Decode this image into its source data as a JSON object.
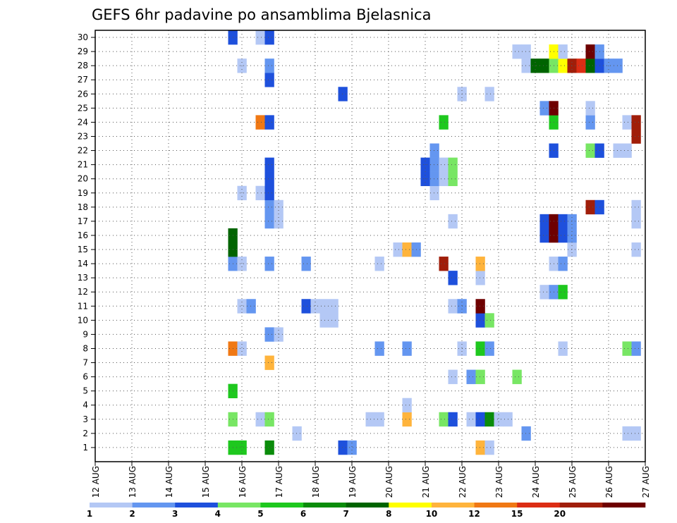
{
  "chart_data": {
    "type": "heatmap",
    "title": "GEFS 6hr padavine po ansamblima Bjelasnica",
    "xlabel": "",
    "ylabel": "",
    "x_ticks": [
      "12 AUG",
      "13 AUG",
      "14 AUG",
      "15 AUG",
      "16 AUG",
      "17 AUG",
      "18 AUG",
      "19 AUG",
      "20 AUG",
      "21 AUG",
      "22 AUG",
      "23 AUG",
      "24 AUG",
      "25 AUG",
      "26 AUG",
      "27 AUG"
    ],
    "y_ticks": [
      "1",
      "2",
      "3",
      "4",
      "5",
      "6",
      "7",
      "8",
      "9",
      "10",
      "11",
      "12",
      "13",
      "14",
      "15",
      "16",
      "17",
      "18",
      "19",
      "20",
      "21",
      "22",
      "23",
      "24",
      "25",
      "26",
      "27",
      "28",
      "29",
      "30"
    ],
    "x_range": [
      "12 AUG 00Z",
      "27 AUG 00Z"
    ],
    "y_range": [
      0,
      30
    ],
    "time_step_hours": 6,
    "grid": "dotted",
    "legend_position": "bottom",
    "color_levels": [
      "1",
      "2",
      "3",
      "4",
      "5",
      "6",
      "7",
      "8",
      "10",
      "12",
      "15",
      "20"
    ],
    "colors": [
      "#b4c8f5",
      "#6496f0",
      "#1e50dc",
      "#78e664",
      "#1ec81e",
      "#0a8c0a",
      "#006400",
      "#ffff00",
      "#ffb43c",
      "#f07814",
      "#dc2d14",
      "#a01e0a",
      "#6e0000"
    ],
    "cells": [
      {
        "member": 1,
        "time": "15 AUG 18Z",
        "cls": 5
      },
      {
        "member": 1,
        "time": "16 AUG 00Z",
        "cls": 5
      },
      {
        "member": 1,
        "time": "16 AUG 18Z",
        "cls": 6
      },
      {
        "member": 1,
        "time": "18 AUG 18Z",
        "cls": 3
      },
      {
        "member": 1,
        "time": "19 AUG 00Z",
        "cls": 2
      },
      {
        "member": 1,
        "time": "22 AUG 12Z",
        "cls": 9
      },
      {
        "member": 1,
        "time": "22 AUG 18Z",
        "cls": 1
      },
      {
        "member": 2,
        "time": "17 AUG 12Z",
        "cls": 1
      },
      {
        "member": 2,
        "time": "23 AUG 18Z",
        "cls": 2
      },
      {
        "member": 2,
        "time": "26 AUG 12Z",
        "cls": 1
      },
      {
        "member": 2,
        "time": "26 AUG 18Z",
        "cls": 1
      },
      {
        "member": 3,
        "time": "15 AUG 18Z",
        "cls": 4
      },
      {
        "member": 3,
        "time": "16 AUG 12Z",
        "cls": 1
      },
      {
        "member": 3,
        "time": "16 AUG 18Z",
        "cls": 4
      },
      {
        "member": 3,
        "time": "19 AUG 12Z",
        "cls": 1
      },
      {
        "member": 3,
        "time": "19 AUG 18Z",
        "cls": 1
      },
      {
        "member": 3,
        "time": "20 AUG 12Z",
        "cls": 9
      },
      {
        "member": 3,
        "time": "21 AUG 12Z",
        "cls": 4
      },
      {
        "member": 3,
        "time": "21 AUG 18Z",
        "cls": 3
      },
      {
        "member": 3,
        "time": "22 AUG 06Z",
        "cls": 1
      },
      {
        "member": 3,
        "time": "22 AUG 12Z",
        "cls": 3
      },
      {
        "member": 3,
        "time": "22 AUG 18Z",
        "cls": 6
      },
      {
        "member": 3,
        "time": "23 AUG 00Z",
        "cls": 1
      },
      {
        "member": 3,
        "time": "23 AUG 06Z",
        "cls": 1
      },
      {
        "member": 4,
        "time": "20 AUG 12Z",
        "cls": 1
      },
      {
        "member": 5,
        "time": "15 AUG 18Z",
        "cls": 5
      },
      {
        "member": 6,
        "time": "21 AUG 18Z",
        "cls": 1
      },
      {
        "member": 6,
        "time": "22 AUG 06Z",
        "cls": 2
      },
      {
        "member": 6,
        "time": "22 AUG 12Z",
        "cls": 4
      },
      {
        "member": 6,
        "time": "23 AUG 12Z",
        "cls": 4
      },
      {
        "member": 7,
        "time": "16 AUG 18Z",
        "cls": 9
      },
      {
        "member": 8,
        "time": "15 AUG 18Z",
        "cls": 10
      },
      {
        "member": 8,
        "time": "16 AUG 00Z",
        "cls": 1
      },
      {
        "member": 8,
        "time": "19 AUG 18Z",
        "cls": 2
      },
      {
        "member": 8,
        "time": "20 AUG 12Z",
        "cls": 2
      },
      {
        "member": 8,
        "time": "22 AUG 00Z",
        "cls": 1
      },
      {
        "member": 8,
        "time": "22 AUG 12Z",
        "cls": 5
      },
      {
        "member": 8,
        "time": "22 AUG 18Z",
        "cls": 2
      },
      {
        "member": 8,
        "time": "24 AUG 18Z",
        "cls": 1
      },
      {
        "member": 8,
        "time": "26 AUG 12Z",
        "cls": 4
      },
      {
        "member": 8,
        "time": "26 AUG 18Z",
        "cls": 2
      },
      {
        "member": 9,
        "time": "16 AUG 18Z",
        "cls": 2
      },
      {
        "member": 9,
        "time": "17 AUG 00Z",
        "cls": 1
      },
      {
        "member": 10,
        "time": "18 AUG 06Z",
        "cls": 1
      },
      {
        "member": 10,
        "time": "18 AUG 12Z",
        "cls": 1
      },
      {
        "member": 10,
        "time": "22 AUG 12Z",
        "cls": 3
      },
      {
        "member": 10,
        "time": "22 AUG 18Z",
        "cls": 4
      },
      {
        "member": 11,
        "time": "16 AUG 00Z",
        "cls": 1
      },
      {
        "member": 11,
        "time": "16 AUG 06Z",
        "cls": 2
      },
      {
        "member": 11,
        "time": "17 AUG 18Z",
        "cls": 3
      },
      {
        "member": 11,
        "time": "18 AUG 00Z",
        "cls": 1
      },
      {
        "member": 11,
        "time": "18 AUG 06Z",
        "cls": 1
      },
      {
        "member": 11,
        "time": "18 AUG 12Z",
        "cls": 1
      },
      {
        "member": 11,
        "time": "21 AUG 18Z",
        "cls": 1
      },
      {
        "member": 11,
        "time": "22 AUG 00Z",
        "cls": 2
      },
      {
        "member": 11,
        "time": "22 AUG 12Z",
        "cls": 13
      },
      {
        "member": 12,
        "time": "24 AUG 06Z",
        "cls": 1
      },
      {
        "member": 12,
        "time": "24 AUG 12Z",
        "cls": 2
      },
      {
        "member": 12,
        "time": "24 AUG 18Z",
        "cls": 5
      },
      {
        "member": 13,
        "time": "21 AUG 18Z",
        "cls": 3
      },
      {
        "member": 13,
        "time": "22 AUG 12Z",
        "cls": 1
      },
      {
        "member": 14,
        "time": "15 AUG 18Z",
        "cls": 2
      },
      {
        "member": 14,
        "time": "16 AUG 00Z",
        "cls": 1
      },
      {
        "member": 14,
        "time": "16 AUG 18Z",
        "cls": 2
      },
      {
        "member": 14,
        "time": "17 AUG 18Z",
        "cls": 2
      },
      {
        "member": 14,
        "time": "19 AUG 18Z",
        "cls": 1
      },
      {
        "member": 14,
        "time": "21 AUG 12Z",
        "cls": 12
      },
      {
        "member": 14,
        "time": "22 AUG 12Z",
        "cls": 9
      },
      {
        "member": 14,
        "time": "24 AUG 12Z",
        "cls": 1
      },
      {
        "member": 14,
        "time": "24 AUG 18Z",
        "cls": 2
      },
      {
        "member": 15,
        "time": "15 AUG 18Z",
        "cls": 7
      },
      {
        "member": 15,
        "time": "20 AUG 06Z",
        "cls": 1
      },
      {
        "member": 15,
        "time": "20 AUG 12Z",
        "cls": 9
      },
      {
        "member": 15,
        "time": "20 AUG 18Z",
        "cls": 2
      },
      {
        "member": 15,
        "time": "25 AUG 00Z",
        "cls": 1
      },
      {
        "member": 15,
        "time": "26 AUG 18Z",
        "cls": 1
      },
      {
        "member": 16,
        "time": "15 AUG 18Z",
        "cls": 7
      },
      {
        "member": 16,
        "time": "24 AUG 06Z",
        "cls": 3
      },
      {
        "member": 16,
        "time": "24 AUG 12Z",
        "cls": 13
      },
      {
        "member": 16,
        "time": "24 AUG 18Z",
        "cls": 3
      },
      {
        "member": 16,
        "time": "25 AUG 00Z",
        "cls": 2
      },
      {
        "member": 17,
        "time": "16 AUG 18Z",
        "cls": 2
      },
      {
        "member": 17,
        "time": "17 AUG 00Z",
        "cls": 1
      },
      {
        "member": 17,
        "time": "21 AUG 18Z",
        "cls": 1
      },
      {
        "member": 17,
        "time": "24 AUG 06Z",
        "cls": 3
      },
      {
        "member": 17,
        "time": "24 AUG 12Z",
        "cls": 13
      },
      {
        "member": 17,
        "time": "24 AUG 18Z",
        "cls": 3
      },
      {
        "member": 17,
        "time": "25 AUG 00Z",
        "cls": 2
      },
      {
        "member": 17,
        "time": "26 AUG 18Z",
        "cls": 1
      },
      {
        "member": 18,
        "time": "16 AUG 18Z",
        "cls": 2
      },
      {
        "member": 18,
        "time": "17 AUG 00Z",
        "cls": 1
      },
      {
        "member": 18,
        "time": "25 AUG 12Z",
        "cls": 12
      },
      {
        "member": 18,
        "time": "25 AUG 18Z",
        "cls": 3
      },
      {
        "member": 18,
        "time": "26 AUG 18Z",
        "cls": 1
      },
      {
        "member": 19,
        "time": "16 AUG 00Z",
        "cls": 1
      },
      {
        "member": 19,
        "time": "16 AUG 12Z",
        "cls": 1
      },
      {
        "member": 19,
        "time": "16 AUG 18Z",
        "cls": 3
      },
      {
        "member": 19,
        "time": "21 AUG 06Z",
        "cls": 1
      },
      {
        "member": 20,
        "time": "16 AUG 18Z",
        "cls": 3
      },
      {
        "member": 20,
        "time": "21 AUG 00Z",
        "cls": 3
      },
      {
        "member": 20,
        "time": "21 AUG 06Z",
        "cls": 2
      },
      {
        "member": 20,
        "time": "21 AUG 12Z",
        "cls": 1
      },
      {
        "member": 20,
        "time": "21 AUG 18Z",
        "cls": 4
      },
      {
        "member": 21,
        "time": "16 AUG 18Z",
        "cls": 3
      },
      {
        "member": 21,
        "time": "21 AUG 00Z",
        "cls": 3
      },
      {
        "member": 21,
        "time": "21 AUG 06Z",
        "cls": 2
      },
      {
        "member": 21,
        "time": "21 AUG 12Z",
        "cls": 1
      },
      {
        "member": 21,
        "time": "21 AUG 18Z",
        "cls": 4
      },
      {
        "member": 22,
        "time": "21 AUG 06Z",
        "cls": 2
      },
      {
        "member": 22,
        "time": "24 AUG 12Z",
        "cls": 3
      },
      {
        "member": 22,
        "time": "25 AUG 12Z",
        "cls": 4
      },
      {
        "member": 22,
        "time": "25 AUG 18Z",
        "cls": 3
      },
      {
        "member": 22,
        "time": "26 AUG 06Z",
        "cls": 1
      },
      {
        "member": 22,
        "time": "26 AUG 12Z",
        "cls": 1
      },
      {
        "member": 23,
        "time": "26 AUG 18Z",
        "cls": 12
      },
      {
        "member": 24,
        "time": "16 AUG 12Z",
        "cls": 10
      },
      {
        "member": 24,
        "time": "16 AUG 18Z",
        "cls": 3
      },
      {
        "member": 24,
        "time": "21 AUG 12Z",
        "cls": 5
      },
      {
        "member": 24,
        "time": "24 AUG 12Z",
        "cls": 5
      },
      {
        "member": 24,
        "time": "25 AUG 12Z",
        "cls": 2
      },
      {
        "member": 24,
        "time": "26 AUG 12Z",
        "cls": 1
      },
      {
        "member": 24,
        "time": "26 AUG 18Z",
        "cls": 12
      },
      {
        "member": 25,
        "time": "24 AUG 06Z",
        "cls": 2
      },
      {
        "member": 25,
        "time": "24 AUG 12Z",
        "cls": 13
      },
      {
        "member": 25,
        "time": "25 AUG 12Z",
        "cls": 1
      },
      {
        "member": 26,
        "time": "18 AUG 18Z",
        "cls": 3
      },
      {
        "member": 26,
        "time": "22 AUG 00Z",
        "cls": 1
      },
      {
        "member": 26,
        "time": "22 AUG 18Z",
        "cls": 1
      },
      {
        "member": 27,
        "time": "16 AUG 18Z",
        "cls": 3
      },
      {
        "member": 28,
        "time": "16 AUG 00Z",
        "cls": 1
      },
      {
        "member": 28,
        "time": "16 AUG 18Z",
        "cls": 2
      },
      {
        "member": 28,
        "time": "23 AUG 18Z",
        "cls": 1
      },
      {
        "member": 28,
        "time": "24 AUG 00Z",
        "cls": 7
      },
      {
        "member": 28,
        "time": "24 AUG 06Z",
        "cls": 7
      },
      {
        "member": 28,
        "time": "24 AUG 12Z",
        "cls": 4
      },
      {
        "member": 28,
        "time": "24 AUG 18Z",
        "cls": 8
      },
      {
        "member": 28,
        "time": "25 AUG 00Z",
        "cls": 12
      },
      {
        "member": 28,
        "time": "25 AUG 06Z",
        "cls": 11
      },
      {
        "member": 28,
        "time": "25 AUG 12Z",
        "cls": 7
      },
      {
        "member": 28,
        "time": "25 AUG 18Z",
        "cls": 3
      },
      {
        "member": 28,
        "time": "26 AUG 00Z",
        "cls": 2
      },
      {
        "member": 28,
        "time": "26 AUG 06Z",
        "cls": 2
      },
      {
        "member": 29,
        "time": "23 AUG 12Z",
        "cls": 1
      },
      {
        "member": 29,
        "time": "23 AUG 18Z",
        "cls": 1
      },
      {
        "member": 29,
        "time": "24 AUG 12Z",
        "cls": 8
      },
      {
        "member": 29,
        "time": "24 AUG 18Z",
        "cls": 1
      },
      {
        "member": 29,
        "time": "25 AUG 12Z",
        "cls": 13
      },
      {
        "member": 29,
        "time": "25 AUG 18Z",
        "cls": 2
      },
      {
        "member": 30,
        "time": "15 AUG 18Z",
        "cls": 3
      },
      {
        "member": 30,
        "time": "16 AUG 12Z",
        "cls": 1
      },
      {
        "member": 30,
        "time": "16 AUG 18Z",
        "cls": 3
      }
    ]
  }
}
